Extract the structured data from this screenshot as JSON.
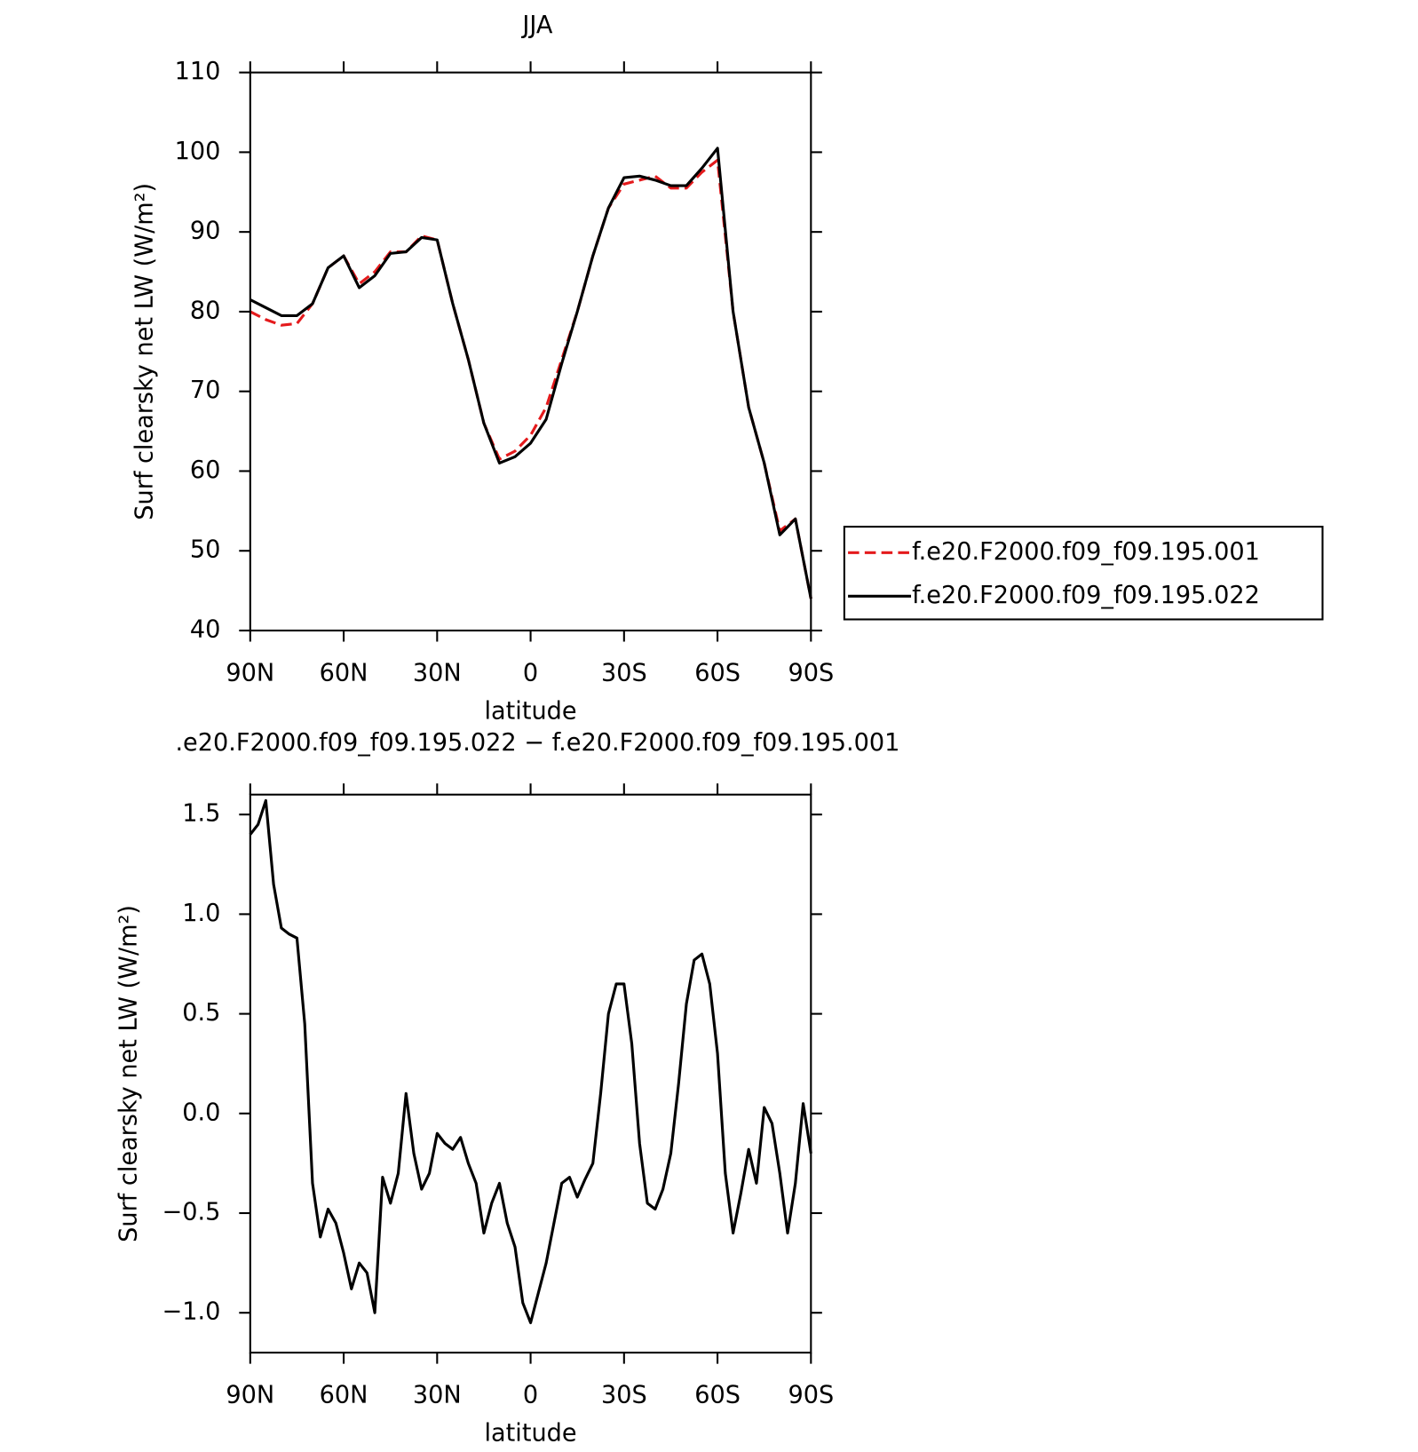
{
  "chart_data": [
    {
      "type": "line",
      "title": "JJA",
      "xlabel": "latitude",
      "ylabel": "Surf clearsky net LW (W/m²)",
      "x": [
        90,
        85,
        80,
        75,
        70,
        65,
        60,
        55,
        50,
        45,
        40,
        35,
        30,
        25,
        20,
        15,
        10,
        5,
        0,
        -5,
        -10,
        -15,
        -20,
        -25,
        -30,
        -35,
        -40,
        -45,
        -50,
        -55,
        -60,
        -65,
        -70,
        -75,
        -80,
        -85,
        -90
      ],
      "series": [
        {
          "name": "f.e20.F2000.f09_f09.195.001",
          "color": "#e41a1c",
          "linestyle": "dashed",
          "values": [
            80,
            79,
            78.3,
            78.5,
            81,
            85.5,
            87,
            83.5,
            85,
            87.5,
            87.5,
            89.5,
            89,
            81,
            74,
            66,
            61.5,
            62.5,
            64.5,
            68,
            74,
            80,
            87,
            93,
            96,
            96.5,
            97,
            95.5,
            95.5,
            97.5,
            99,
            80,
            68,
            61,
            52.5,
            54,
            44
          ]
        },
        {
          "name": "f.e20.F2000.f09_f09.195.022",
          "color": "#000000",
          "linestyle": "solid",
          "values": [
            81.5,
            80.5,
            79.5,
            79.5,
            81,
            85.5,
            87,
            83,
            84.5,
            87.3,
            87.5,
            89.3,
            89,
            81,
            74,
            66,
            61,
            61.8,
            63.5,
            66.5,
            73.5,
            80,
            87,
            93,
            96.8,
            97,
            96.5,
            95.8,
            95.8,
            98,
            100.5,
            80,
            68,
            61,
            52,
            54,
            44
          ]
        }
      ],
      "xlim": [
        90,
        -90
      ],
      "xticks": [
        {
          "value": 90,
          "label": "90N"
        },
        {
          "value": 60,
          "label": "60N"
        },
        {
          "value": 30,
          "label": "30N"
        },
        0,
        {
          "value": -30,
          "label": "30S"
        },
        {
          "value": -60,
          "label": "60S"
        },
        {
          "value": -90,
          "label": "90S"
        }
      ],
      "ylim": [
        40,
        110
      ],
      "yticks": [
        40,
        50,
        60,
        70,
        80,
        90,
        100,
        110
      ],
      "legend": "right"
    },
    {
      "type": "line",
      "title": ".e20.F2000.f09_f09.195.022 − f.e20.F2000.f09_f09.195.001",
      "xlabel": "latitude",
      "ylabel": "Surf clearsky net LW (W/m²)",
      "x": [
        90,
        87.5,
        85,
        82.5,
        80,
        77.5,
        75,
        72.5,
        70,
        67.5,
        65,
        62.5,
        60,
        57.5,
        55,
        52.5,
        50,
        47.5,
        45,
        42.5,
        40,
        37.5,
        35,
        32.5,
        30,
        27.5,
        25,
        22.5,
        20,
        17.5,
        15,
        12.5,
        10,
        7.5,
        5,
        2.5,
        0,
        -2.5,
        -5,
        -7.5,
        -10,
        -12.5,
        -15,
        -17.5,
        -20,
        -22.5,
        -25,
        -27.5,
        -30,
        -32.5,
        -35,
        -37.5,
        -40,
        -42.5,
        -45,
        -47.5,
        -50,
        -52.5,
        -55,
        -57.5,
        -60,
        -62.5,
        -65,
        -67.5,
        -70,
        -72.5,
        -75,
        -77.5,
        -80,
        -82.5,
        -85,
        -87.5,
        -90
      ],
      "series": [
        {
          "color": "#000000",
          "linestyle": "solid",
          "values": [
            1.4,
            1.45,
            1.57,
            1.15,
            0.93,
            0.9,
            0.88,
            0.45,
            -0.35,
            -0.62,
            -0.48,
            -0.55,
            -0.7,
            -0.88,
            -0.75,
            -0.8,
            -1.0,
            -0.32,
            -0.45,
            -0.3,
            0.1,
            -0.2,
            -0.38,
            -0.3,
            -0.1,
            -0.15,
            -0.18,
            -0.12,
            -0.25,
            -0.35,
            -0.6,
            -0.45,
            -0.35,
            -0.55,
            -0.67,
            -0.95,
            -1.05,
            -0.9,
            -0.75,
            -0.55,
            -0.35,
            -0.32,
            -0.42,
            -0.33,
            -0.25,
            0.1,
            0.5,
            0.65,
            0.65,
            0.35,
            -0.15,
            -0.45,
            -0.48,
            -0.38,
            -0.2,
            0.15,
            0.55,
            0.77,
            0.8,
            0.65,
            0.3,
            -0.3,
            -0.6,
            -0.4,
            -0.18,
            -0.35,
            0.03,
            -0.05,
            -0.3,
            -0.6,
            -0.35,
            0.05,
            -0.2
          ]
        }
      ],
      "xlim": [
        90,
        -90
      ],
      "xticks": [
        {
          "value": 90,
          "label": "90N"
        },
        {
          "value": 60,
          "label": "60N"
        },
        {
          "value": 30,
          "label": "30N"
        },
        0,
        {
          "value": -30,
          "label": "30S"
        },
        {
          "value": -60,
          "label": "60S"
        },
        {
          "value": -90,
          "label": "90S"
        }
      ],
      "ylim": [
        -1.2,
        1.6
      ],
      "yticks": [
        {
          "value": -1,
          "label": "−1.0"
        },
        {
          "value": -0.5,
          "label": "−0.5"
        },
        {
          "value": 0,
          "label": "0.0"
        },
        0.5,
        {
          "value": 1,
          "label": "1.0"
        },
        1.5
      ]
    }
  ]
}
